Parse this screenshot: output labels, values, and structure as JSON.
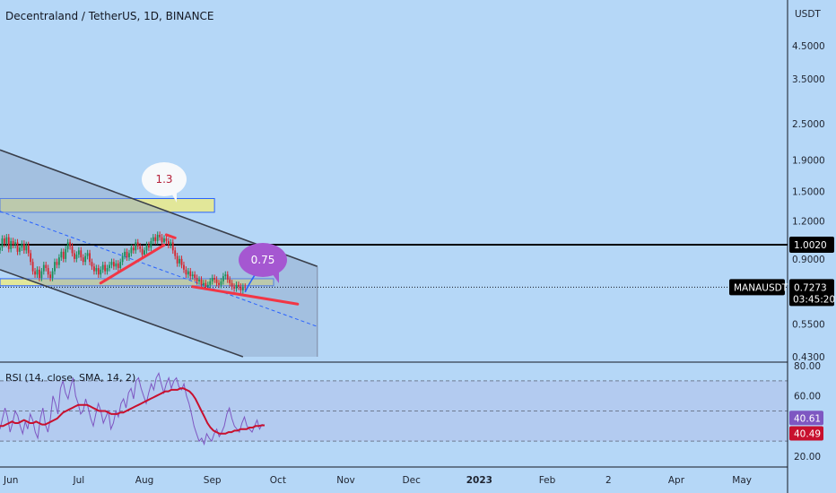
{
  "chart_data": {
    "type": "candlestick",
    "title": "Decentraland / TetherUS, 1D, BINANCE",
    "symbol": "MANAUSDT",
    "currency": "USDT",
    "price_axis": {
      "scale": "log",
      "range": [
        0.43,
        6.5
      ],
      "ticks": [
        "4.5000",
        "3.5000",
        "2.5000",
        "1.9000",
        "1.5000",
        "1.2000",
        "0.9000",
        "0.5500",
        "0.4300"
      ],
      "tick_values": [
        4.5,
        3.5,
        2.5,
        1.9,
        1.5,
        1.2,
        0.9,
        0.55,
        0.43
      ]
    },
    "time_axis": {
      "labels": [
        "Jun",
        "Jul",
        "Aug",
        "Sep",
        "Oct",
        "Nov",
        "Dec",
        "2023",
        "Feb",
        "2",
        "Apr",
        "May"
      ],
      "label_days": [
        5,
        36,
        66,
        97,
        127,
        158,
        188,
        219,
        250,
        278,
        309,
        339
      ]
    },
    "current_price": {
      "label": "MANAUSDT",
      "value": "0.7273",
      "countdown": "03:45:20",
      "value_num": 0.7273
    },
    "horizontal_line": {
      "value": "1.0020",
      "value_num": 1.002
    },
    "annotations": {
      "target_top": "1.3",
      "target_near": "0.75"
    },
    "zones": [
      {
        "low": 1.28,
        "high": 1.42,
        "start_day": 0,
        "end_day": 98
      },
      {
        "low": 0.735,
        "high": 0.775,
        "start_day": 0,
        "end_day": 125
      }
    ],
    "channel": {
      "upper": {
        "day1": 0,
        "price1": 2.05,
        "day2": 145,
        "price2": 0.85
      },
      "lower": {
        "day1": 0,
        "price1": 0.83,
        "day2": 111,
        "price2": 0.43
      },
      "mid": {
        "day1": 0,
        "price1": 1.29,
        "day2": 145,
        "price2": 0.54
      }
    },
    "trendlines": [
      {
        "day1": 46,
        "price1": 0.75,
        "day2": 75,
        "price2": 1.0
      },
      {
        "day1": 76,
        "price1": 1.08,
        "day2": 80,
        "price2": 1.055
      },
      {
        "day1": 88,
        "price1": 0.73,
        "day2": 136,
        "price2": 0.64
      }
    ],
    "projection": {
      "from_day": 112,
      "from_price": 0.7,
      "to_day": 123,
      "to_price": 0.94
    },
    "candles": [
      0.98,
      1.05,
      1.01,
      1.06,
      0.97,
      1.03,
      1.0,
      1.02,
      0.95,
      0.98,
      1.01,
      0.96,
      1.0,
      0.94,
      0.88,
      0.82,
      0.8,
      0.83,
      0.78,
      0.82,
      0.86,
      0.84,
      0.8,
      0.78,
      0.82,
      0.88,
      0.86,
      0.91,
      0.95,
      0.9,
      0.97,
      1.02,
      0.99,
      0.94,
      0.9,
      0.93,
      0.96,
      0.91,
      0.88,
      0.92,
      0.94,
      0.88,
      0.85,
      0.82,
      0.84,
      0.8,
      0.83,
      0.86,
      0.82,
      0.84,
      0.86,
      0.88,
      0.85,
      0.87,
      0.84,
      0.88,
      0.92,
      0.95,
      0.91,
      0.94,
      0.98,
      0.96,
      1.02,
      0.99,
      0.97,
      0.93,
      0.96,
      1.0,
      0.98,
      1.03,
      1.06,
      1.03,
      1.08,
      1.06,
      1.02,
      1.05,
      1.03,
      1.0,
      1.02,
      0.96,
      0.92,
      0.87,
      0.9,
      0.86,
      0.83,
      0.8,
      0.82,
      0.79,
      0.8,
      0.78,
      0.76,
      0.77,
      0.74,
      0.75,
      0.73,
      0.74,
      0.76,
      0.78,
      0.77,
      0.75,
      0.74,
      0.76,
      0.79,
      0.8,
      0.77,
      0.75,
      0.73,
      0.72,
      0.74,
      0.73,
      0.71,
      0.73,
      0.7273
    ],
    "candles_start_day": 0,
    "rsi": {
      "label": "RSI (14, close, SMA, 14, 2)",
      "range": [
        20,
        80
      ],
      "ticks": [
        "80.00",
        "60.00",
        "20.00"
      ],
      "tick_values": [
        80,
        60,
        20
      ],
      "bands": [
        70,
        50,
        30
      ],
      "rsi_value": "40.61",
      "ma_value": "40.49",
      "rsi_value_num": 40.61,
      "ma_value_num": 40.49,
      "series": [
        38,
        45,
        52,
        46,
        36,
        42,
        50,
        47,
        40,
        35,
        43,
        38,
        48,
        44,
        36,
        32,
        45,
        52,
        41,
        36,
        45,
        60,
        55,
        48,
        65,
        70,
        62,
        58,
        66,
        72,
        60,
        55,
        48,
        50,
        58,
        52,
        45,
        40,
        48,
        55,
        50,
        42,
        46,
        50,
        38,
        42,
        50,
        46,
        55,
        58,
        52,
        62,
        65,
        58,
        70,
        72,
        65,
        60,
        55,
        62,
        68,
        64,
        72,
        75,
        68,
        62,
        68,
        72,
        65,
        70,
        72,
        66,
        64,
        68,
        60,
        55,
        48,
        40,
        35,
        30,
        32,
        28,
        35,
        32,
        30,
        35,
        38,
        33,
        36,
        40,
        48,
        52,
        45,
        40,
        38,
        36,
        42,
        46,
        40,
        38,
        36,
        40,
        44,
        38,
        41,
        40.61
      ],
      "ma": [
        40,
        40,
        41,
        42,
        43,
        42,
        42,
        43,
        44,
        43,
        42,
        42,
        43,
        42,
        41,
        41,
        42,
        43,
        44,
        45,
        47,
        49,
        50,
        51,
        52,
        53,
        54,
        54,
        54,
        54,
        53,
        52,
        51,
        50,
        50,
        50,
        49,
        48,
        48,
        48,
        49,
        49,
        50,
        51,
        52,
        53,
        54,
        55,
        56,
        57,
        58,
        59,
        60,
        61,
        62,
        63,
        63,
        64,
        64,
        64,
        65,
        65,
        64,
        63,
        61,
        58,
        54,
        50,
        46,
        42,
        39,
        37,
        36,
        35,
        35,
        35,
        36,
        36,
        37,
        37,
        38,
        38,
        38,
        39,
        39,
        40,
        40,
        40.5,
        40.49
      ]
    }
  }
}
